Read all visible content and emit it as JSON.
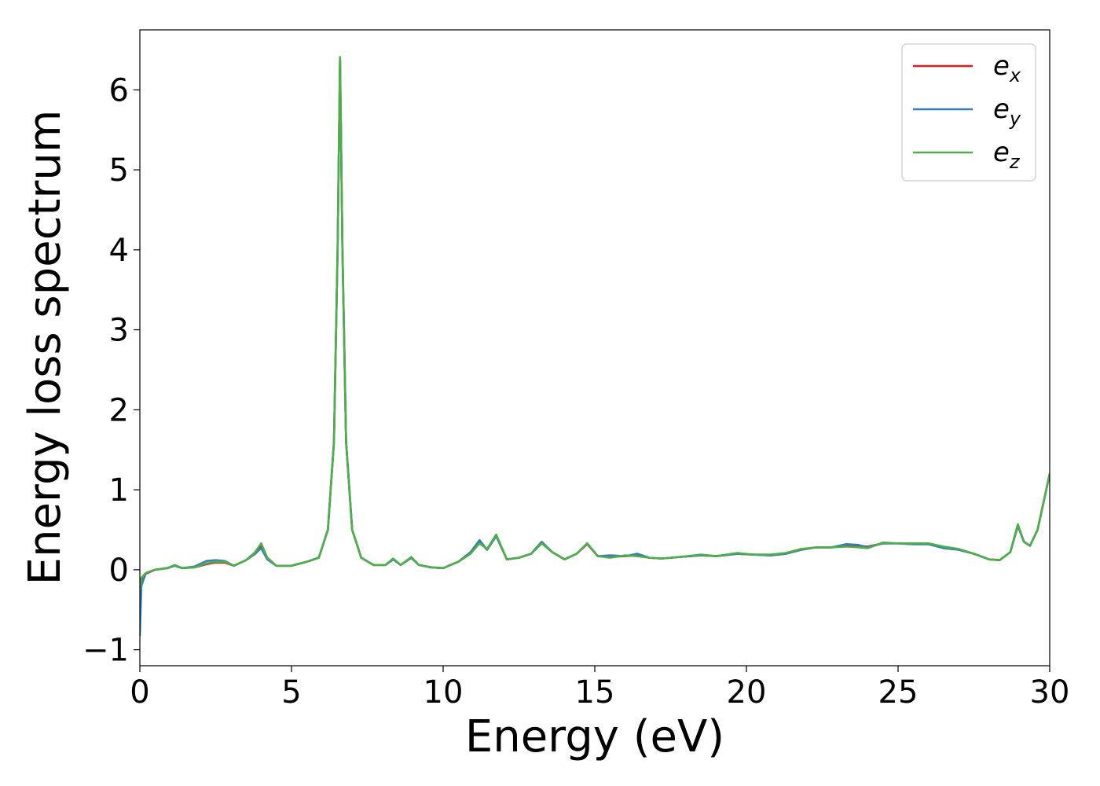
{
  "chart_data": {
    "type": "line",
    "xlabel": "Energy (eV)",
    "ylabel": "Energy loss spectrum",
    "xlim": [
      0,
      30
    ],
    "ylim": [
      -1.2,
      6.75
    ],
    "x_ticks": [
      0,
      5,
      10,
      15,
      20,
      25,
      30
    ],
    "y_ticks": [
      -1,
      0,
      1,
      2,
      3,
      4,
      5,
      6
    ],
    "x_tick_labels": [
      "0",
      "5",
      "10",
      "15",
      "20",
      "25",
      "30"
    ],
    "y_tick_labels": [
      "−1",
      "0",
      "1",
      "2",
      "3",
      "4",
      "5",
      "6"
    ],
    "grid": false,
    "legend_position": "top-right",
    "series": [
      {
        "name": "e_x",
        "label_base": "e",
        "label_sub": "x",
        "color": "#e41a1c",
        "x": [
          0.0,
          0.05,
          0.2,
          0.5,
          0.9,
          1.15,
          1.4,
          1.8,
          2.2,
          2.5,
          2.8,
          3.1,
          3.5,
          3.8,
          4.0,
          4.2,
          4.5,
          5.0,
          5.5,
          5.9,
          6.2,
          6.4,
          6.52,
          6.6,
          6.68,
          6.8,
          7.0,
          7.3,
          7.7,
          8.1,
          8.35,
          8.6,
          8.95,
          9.2,
          9.6,
          10.0,
          10.5,
          10.9,
          11.2,
          11.45,
          11.75,
          12.1,
          12.5,
          12.9,
          13.25,
          13.6,
          14.0,
          14.4,
          14.75,
          15.1,
          15.5,
          16.0,
          16.4,
          16.8,
          17.2,
          17.8,
          18.5,
          19.0,
          19.7,
          20.2,
          20.8,
          21.3,
          21.8,
          22.3,
          22.8,
          23.3,
          23.7,
          24.0,
          24.5,
          25.0,
          25.5,
          26.0,
          26.5,
          27.0,
          27.5,
          28.0,
          28.35,
          28.7,
          28.95,
          29.15,
          29.35,
          29.6,
          29.8,
          30.0
        ],
        "y": [
          -0.45,
          -0.12,
          -0.05,
          0.0,
          0.02,
          0.05,
          0.02,
          0.03,
          0.07,
          0.09,
          0.09,
          0.05,
          0.12,
          0.2,
          0.3,
          0.15,
          0.05,
          0.05,
          0.1,
          0.15,
          0.5,
          1.6,
          4.0,
          6.4,
          4.0,
          1.6,
          0.5,
          0.15,
          0.06,
          0.06,
          0.13,
          0.06,
          0.15,
          0.06,
          0.03,
          0.02,
          0.1,
          0.2,
          0.35,
          0.25,
          0.43,
          0.13,
          0.15,
          0.2,
          0.33,
          0.22,
          0.13,
          0.2,
          0.32,
          0.17,
          0.16,
          0.17,
          0.18,
          0.15,
          0.14,
          0.16,
          0.18,
          0.17,
          0.2,
          0.19,
          0.18,
          0.2,
          0.25,
          0.28,
          0.28,
          0.3,
          0.3,
          0.29,
          0.33,
          0.33,
          0.32,
          0.32,
          0.28,
          0.25,
          0.2,
          0.13,
          0.12,
          0.22,
          0.55,
          0.35,
          0.3,
          0.5,
          0.85,
          1.2
        ]
      },
      {
        "name": "e_y",
        "label_base": "e",
        "label_sub": "y",
        "color": "#377eb8",
        "x": [
          0.0,
          0.05,
          0.2,
          0.5,
          0.9,
          1.15,
          1.4,
          1.8,
          2.2,
          2.5,
          2.8,
          3.1,
          3.5,
          3.8,
          4.0,
          4.2,
          4.5,
          5.0,
          5.5,
          5.9,
          6.2,
          6.4,
          6.52,
          6.6,
          6.68,
          6.8,
          7.0,
          7.3,
          7.7,
          8.1,
          8.35,
          8.6,
          8.95,
          9.2,
          9.6,
          10.0,
          10.5,
          10.9,
          11.2,
          11.45,
          11.75,
          12.1,
          12.5,
          12.9,
          13.25,
          13.6,
          14.0,
          14.4,
          14.75,
          15.1,
          15.5,
          16.0,
          16.4,
          16.8,
          17.2,
          17.8,
          18.5,
          19.0,
          19.7,
          20.2,
          20.8,
          21.3,
          21.8,
          22.3,
          22.8,
          23.3,
          23.7,
          24.0,
          24.5,
          25.0,
          25.5,
          26.0,
          26.5,
          27.0,
          27.5,
          28.0,
          28.35,
          28.7,
          28.95,
          29.15,
          29.35,
          29.6,
          29.8,
          30.0
        ],
        "y": [
          -0.82,
          -0.2,
          -0.04,
          0.0,
          0.02,
          0.05,
          0.02,
          0.04,
          0.11,
          0.12,
          0.11,
          0.05,
          0.12,
          0.2,
          0.27,
          0.13,
          0.05,
          0.05,
          0.1,
          0.15,
          0.5,
          1.6,
          4.0,
          6.38,
          4.0,
          1.6,
          0.5,
          0.15,
          0.06,
          0.06,
          0.13,
          0.06,
          0.15,
          0.06,
          0.03,
          0.02,
          0.1,
          0.22,
          0.37,
          0.25,
          0.42,
          0.13,
          0.15,
          0.2,
          0.35,
          0.22,
          0.13,
          0.2,
          0.33,
          0.17,
          0.18,
          0.17,
          0.2,
          0.15,
          0.14,
          0.16,
          0.18,
          0.17,
          0.2,
          0.19,
          0.18,
          0.2,
          0.25,
          0.28,
          0.28,
          0.32,
          0.31,
          0.28,
          0.33,
          0.33,
          0.32,
          0.32,
          0.27,
          0.25,
          0.2,
          0.13,
          0.12,
          0.22,
          0.55,
          0.35,
          0.3,
          0.5,
          0.85,
          1.2
        ]
      },
      {
        "name": "e_z",
        "label_base": "e",
        "label_sub": "z",
        "color": "#4daf4a",
        "x": [
          0.0,
          0.05,
          0.2,
          0.5,
          0.9,
          1.15,
          1.4,
          1.8,
          2.2,
          2.5,
          2.8,
          3.1,
          3.5,
          3.8,
          4.0,
          4.2,
          4.5,
          5.0,
          5.5,
          5.9,
          6.2,
          6.4,
          6.52,
          6.6,
          6.68,
          6.8,
          7.0,
          7.3,
          7.7,
          8.1,
          8.35,
          8.6,
          8.95,
          9.2,
          9.6,
          10.0,
          10.5,
          10.9,
          11.2,
          11.45,
          11.75,
          12.1,
          12.5,
          12.9,
          13.25,
          13.6,
          14.0,
          14.4,
          14.75,
          15.1,
          15.5,
          16.0,
          16.4,
          16.8,
          17.2,
          17.8,
          18.5,
          19.0,
          19.7,
          20.2,
          20.8,
          21.3,
          21.8,
          22.3,
          22.8,
          23.3,
          23.7,
          24.0,
          24.5,
          25.0,
          25.5,
          26.0,
          26.5,
          27.0,
          27.5,
          28.0,
          28.35,
          28.7,
          28.95,
          29.15,
          29.35,
          29.6,
          29.8,
          30.0
        ],
        "y": [
          -0.25,
          -0.1,
          -0.04,
          0.0,
          0.02,
          0.06,
          0.02,
          0.03,
          0.08,
          0.1,
          0.1,
          0.05,
          0.12,
          0.22,
          0.33,
          0.15,
          0.05,
          0.05,
          0.1,
          0.15,
          0.5,
          1.6,
          4.0,
          6.41,
          4.0,
          1.6,
          0.5,
          0.15,
          0.06,
          0.06,
          0.14,
          0.06,
          0.16,
          0.06,
          0.03,
          0.02,
          0.1,
          0.2,
          0.33,
          0.26,
          0.44,
          0.13,
          0.15,
          0.2,
          0.33,
          0.22,
          0.13,
          0.2,
          0.33,
          0.17,
          0.15,
          0.18,
          0.17,
          0.15,
          0.14,
          0.16,
          0.19,
          0.17,
          0.21,
          0.19,
          0.19,
          0.21,
          0.26,
          0.28,
          0.28,
          0.29,
          0.28,
          0.27,
          0.34,
          0.33,
          0.33,
          0.33,
          0.29,
          0.26,
          0.2,
          0.13,
          0.12,
          0.22,
          0.57,
          0.35,
          0.3,
          0.5,
          0.85,
          1.2
        ]
      }
    ]
  }
}
